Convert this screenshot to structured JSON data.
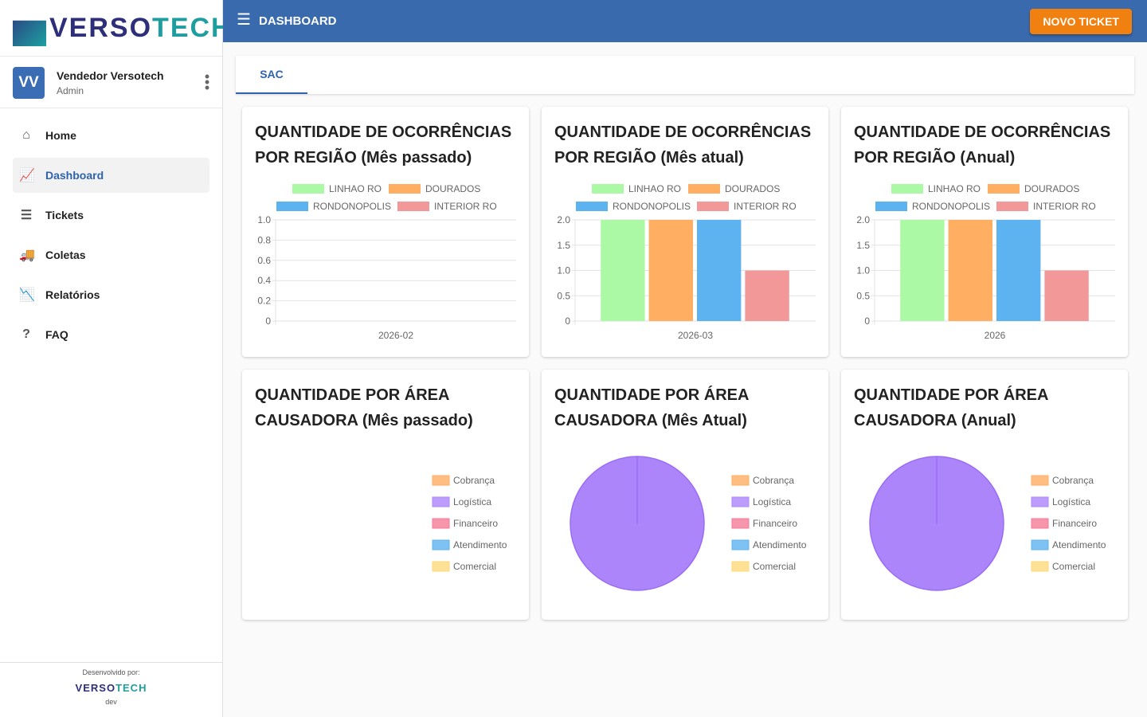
{
  "brand": {
    "logo": "VERSOTECH"
  },
  "user": {
    "initials": "VV",
    "name": "Vendedor Versotech",
    "role": "Admin"
  },
  "nav": [
    {
      "label": "Home",
      "icon": "home-icon",
      "glyph": "⌂"
    },
    {
      "label": "Dashboard",
      "icon": "chart-line-icon",
      "glyph": "📈",
      "active": true
    },
    {
      "label": "Tickets",
      "icon": "list-icon",
      "glyph": "☰"
    },
    {
      "label": "Coletas",
      "icon": "truck-icon",
      "glyph": "🚚"
    },
    {
      "label": "Relatórios",
      "icon": "chart-icon",
      "glyph": "📉"
    },
    {
      "label": "FAQ",
      "icon": "help-icon",
      "glyph": "?"
    }
  ],
  "footer": {
    "developed_by": "Desenvolvido por:",
    "logo": "VERSOTECH",
    "env": "dev"
  },
  "header": {
    "title": "DASHBOARD",
    "new_ticket": "NOVO TICKET"
  },
  "tabs": [
    {
      "label": "SAC",
      "active": true
    }
  ],
  "chart_data": [
    {
      "type": "bar",
      "title": "QUANTIDADE DE OCORRÊNCIAS POR REGIÃO (Mês passado)",
      "categories": [
        "2026-02"
      ],
      "series": [
        {
          "name": "LINHAO RO",
          "values": [
            0
          ],
          "color": "#abf9a4"
        },
        {
          "name": "DOURADOS",
          "values": [
            0
          ],
          "color": "#ffae62"
        },
        {
          "name": "RONDONOPOLIS",
          "values": [
            0
          ],
          "color": "#5cb3ef"
        },
        {
          "name": "INTERIOR RO",
          "values": [
            0
          ],
          "color": "#f39898"
        }
      ],
      "ylim": [
        0,
        1
      ],
      "yticks": [
        "0",
        "0.2",
        "0.4",
        "0.6",
        "0.8",
        "1.0"
      ],
      "legend": "top"
    },
    {
      "type": "bar",
      "title": "QUANTIDADE DE OCORRÊNCIAS POR REGIÃO (Mês atual)",
      "categories": [
        "2026-03"
      ],
      "series": [
        {
          "name": "LINHAO RO",
          "values": [
            2
          ],
          "color": "#abf9a4"
        },
        {
          "name": "DOURADOS",
          "values": [
            2
          ],
          "color": "#ffae62"
        },
        {
          "name": "RONDONOPOLIS",
          "values": [
            2
          ],
          "color": "#5cb3ef"
        },
        {
          "name": "INTERIOR RO",
          "values": [
            1
          ],
          "color": "#f39898"
        }
      ],
      "ylim": [
        0,
        2
      ],
      "yticks": [
        "0",
        "0.5",
        "1.0",
        "1.5",
        "2.0"
      ],
      "legend": "top"
    },
    {
      "type": "bar",
      "title": "QUANTIDADE DE OCORRÊNCIAS POR REGIÃO (Anual)",
      "categories": [
        "2026"
      ],
      "series": [
        {
          "name": "LINHAO RO",
          "values": [
            2
          ],
          "color": "#abf9a4"
        },
        {
          "name": "DOURADOS",
          "values": [
            2
          ],
          "color": "#ffae62"
        },
        {
          "name": "RONDONOPOLIS",
          "values": [
            2
          ],
          "color": "#5cb3ef"
        },
        {
          "name": "INTERIOR RO",
          "values": [
            1
          ],
          "color": "#f39898"
        }
      ],
      "ylim": [
        0,
        2
      ],
      "yticks": [
        "0",
        "0.5",
        "1.0",
        "1.5",
        "2.0"
      ],
      "legend": "top"
    },
    {
      "type": "pie",
      "title": "QUANTIDADE POR ÁREA CAUSADORA (Mês passado)",
      "labels": [
        "Cobrança",
        "Logística",
        "Financeiro",
        "Atendimento",
        "Comercial"
      ],
      "values": [
        0,
        0,
        0,
        0,
        0
      ],
      "colors": [
        "#ffae62",
        "#ad85fb",
        "#f47a96",
        "#5cb3ef",
        "#ffd97a"
      ],
      "legend": "right"
    },
    {
      "type": "pie",
      "title": "QUANTIDADE POR ÁREA CAUSADORA (Mês Atual)",
      "labels": [
        "Cobrança",
        "Logística",
        "Financeiro",
        "Atendimento",
        "Comercial"
      ],
      "values": [
        0,
        1,
        0,
        0,
        0
      ],
      "colors": [
        "#ffae62",
        "#ad85fb",
        "#f47a96",
        "#5cb3ef",
        "#ffd97a"
      ],
      "legend": "right"
    },
    {
      "type": "pie",
      "title": "QUANTIDADE POR ÁREA CAUSADORA (Anual)",
      "labels": [
        "Cobrança",
        "Logística",
        "Financeiro",
        "Atendimento",
        "Comercial"
      ],
      "values": [
        0,
        1,
        0,
        0,
        0
      ],
      "colors": [
        "#ffae62",
        "#ad85fb",
        "#f47a96",
        "#5cb3ef",
        "#ffd97a"
      ],
      "legend": "right"
    }
  ]
}
